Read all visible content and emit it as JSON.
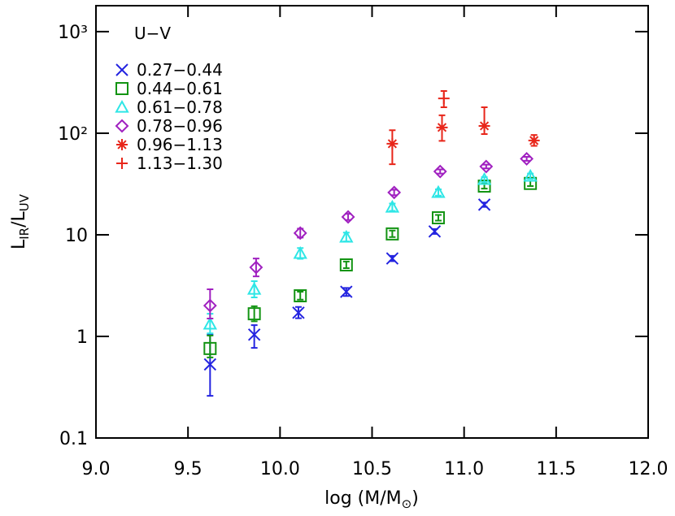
{
  "chart_data": {
    "type": "scatter",
    "xlabel": [
      "log (M/M",
      "⊙",
      ")"
    ],
    "ylabel": [
      "L",
      "IR",
      "/L",
      "UV"
    ],
    "legend_title": "U−V",
    "xlim": [
      9.0,
      12.0
    ],
    "xticks": [
      {
        "value": 9.0,
        "label": "9.0"
      },
      {
        "value": 9.5,
        "label": "9.5"
      },
      {
        "value": 10.0,
        "label": "10.0"
      },
      {
        "value": 10.5,
        "label": "10.5"
      },
      {
        "value": 11.0,
        "label": "11.0"
      },
      {
        "value": 11.5,
        "label": "11.5"
      },
      {
        "value": 12.0,
        "label": "12.0"
      }
    ],
    "ylim": [
      0.1,
      1800
    ],
    "log_y": true,
    "yticks": [
      0.1,
      1,
      10,
      {
        "value": 100,
        "label": "10²"
      },
      {
        "value": 1000,
        "label": "10³"
      }
    ],
    "series": [
      {
        "name": "0.27−0.44",
        "color": "#2424e0",
        "marker": "x",
        "x": [
          9.62,
          9.86,
          10.1,
          10.36,
          10.61,
          10.84,
          11.11
        ],
        "values": [
          0.53,
          1.04,
          1.71,
          2.75,
          5.85,
          10.8,
          19.8
        ],
        "ylow": [
          0.26,
          0.77,
          1.51,
          2.5,
          5.5,
          10.2,
          18.8
        ],
        "yhigh": [
          1.04,
          1.29,
          1.95,
          3.0,
          6.2,
          11.4,
          20.8
        ]
      },
      {
        "name": "0.44−0.61",
        "color": "#139413",
        "marker": "square",
        "x": [
          9.62,
          9.86,
          10.11,
          10.36,
          10.61,
          10.86,
          11.11,
          11.36
        ],
        "values": [
          0.76,
          1.67,
          2.51,
          5.05,
          10.2,
          14.7,
          30.2,
          32.0
        ],
        "ylow": [
          0.62,
          1.41,
          2.3,
          4.7,
          9.5,
          13.8,
          28.5,
          30.2
        ],
        "yhigh": [
          1.02,
          1.98,
          2.75,
          5.45,
          11.0,
          15.7,
          32.0,
          34.0
        ]
      },
      {
        "name": "0.61−0.78",
        "color": "#2ee6e6",
        "marker": "triangle",
        "x": [
          9.62,
          9.86,
          10.11,
          10.36,
          10.61,
          10.86,
          11.11,
          11.36
        ],
        "values": [
          1.32,
          2.91,
          6.55,
          9.47,
          18.7,
          26.1,
          35.0,
          37.7
        ],
        "ylow": [
          1.07,
          2.42,
          5.8,
          8.6,
          17.2,
          24.3,
          33.0,
          35.5
        ],
        "yhigh": [
          1.67,
          3.5,
          7.4,
          10.5,
          20.3,
          28.0,
          37.0,
          40.0
        ]
      },
      {
        "name": "0.78−0.96",
        "color": "#a020c0",
        "marker": "diamond",
        "x": [
          9.62,
          9.87,
          10.11,
          10.37,
          10.62,
          10.87,
          11.12,
          11.34
        ],
        "values": [
          2.01,
          4.78,
          10.4,
          15.0,
          26.1,
          42.0,
          47.0,
          56.0
        ],
        "ylow": [
          1.5,
          3.9,
          9.4,
          14.0,
          24.5,
          40.0,
          45.0,
          53.5
        ],
        "yhigh": [
          2.91,
          5.85,
          11.5,
          16.1,
          27.8,
          44.0,
          49.0,
          58.5
        ]
      },
      {
        "name": "0.96−1.13",
        "color": "#e8261a",
        "marker": "asterisk",
        "x": [
          10.61,
          10.88,
          11.11,
          11.38
        ],
        "values": [
          78.8,
          114,
          118,
          84.8
        ],
        "ylow": [
          49.5,
          84,
          98,
          75
        ],
        "yhigh": [
          107,
          150,
          180,
          96
        ]
      },
      {
        "name": "1.13−1.30",
        "color": "#e8261a",
        "marker": "plus",
        "x": [
          10.89
        ],
        "values": [
          220
        ],
        "ylow": [
          180
        ],
        "yhigh": [
          260
        ]
      }
    ]
  }
}
